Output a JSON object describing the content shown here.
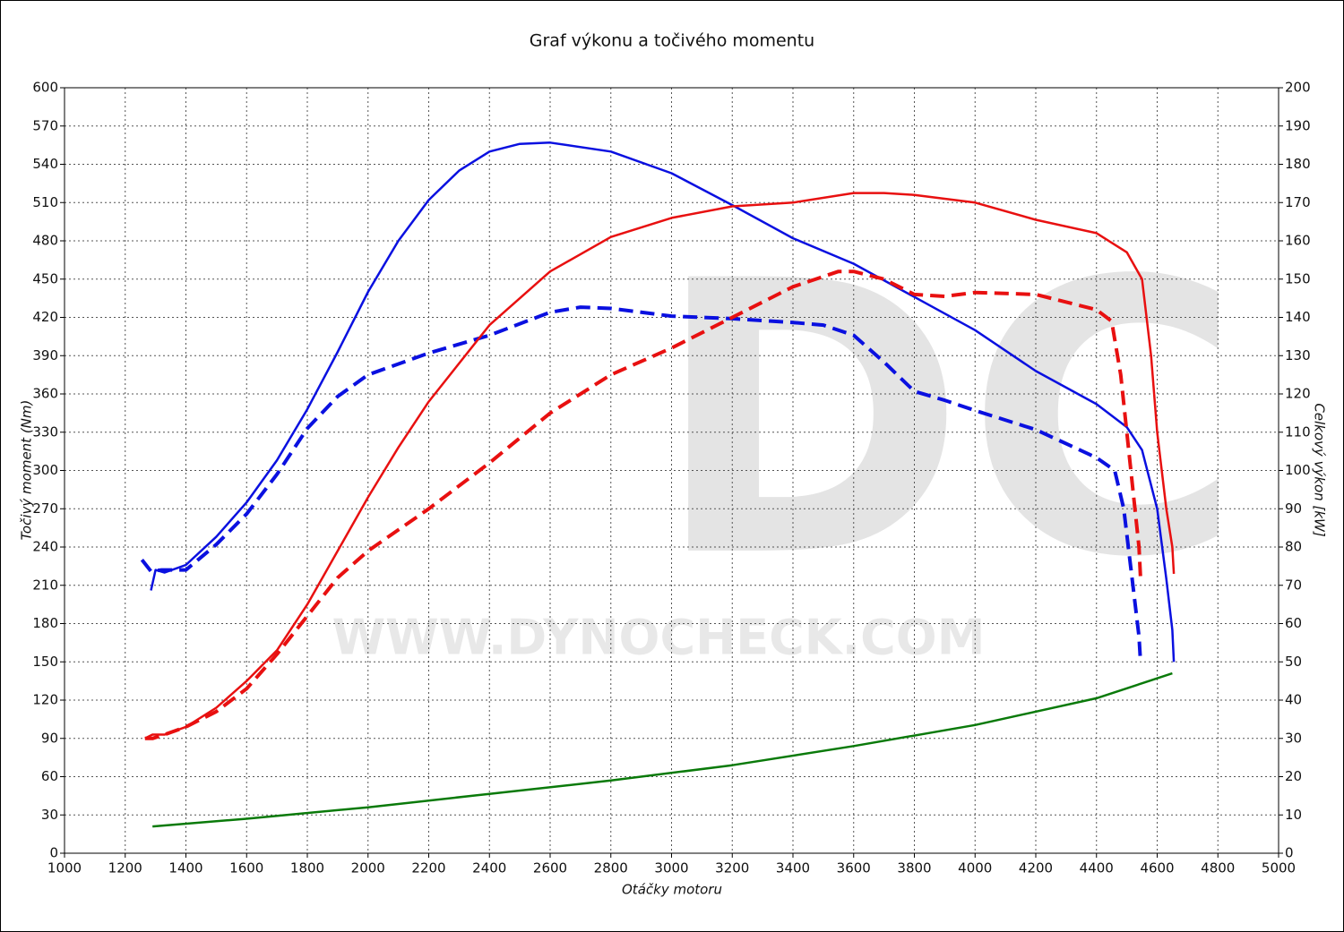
{
  "chart_data": {
    "type": "line",
    "title": "Graf výkonu a točivého momentu",
    "x_label": "Otáčky motoru",
    "y_label": "Točivý moment (Nm)",
    "y2_label": "Celkový výkon [kW]",
    "watermark": "DC",
    "watermark_url": "WWW.DYNOCHECK.COM",
    "xlim": [
      1000,
      5000
    ],
    "xticks": [
      1000,
      1200,
      1400,
      1600,
      1800,
      2000,
      2200,
      2400,
      2600,
      2800,
      3000,
      3200,
      3400,
      3600,
      3800,
      4000,
      4200,
      4400,
      4600,
      4800,
      5000
    ],
    "ylim": [
      0,
      600
    ],
    "yticks": [
      0,
      30,
      60,
      90,
      120,
      150,
      180,
      210,
      240,
      270,
      300,
      330,
      360,
      390,
      420,
      450,
      480,
      510,
      540,
      570,
      600
    ],
    "y2lim": [
      0,
      200
    ],
    "y2ticks": [
      0,
      10,
      20,
      30,
      40,
      50,
      60,
      70,
      80,
      90,
      100,
      110,
      120,
      130,
      140,
      150,
      160,
      170,
      180,
      190,
      200
    ],
    "grid": true,
    "series": [
      {
        "color": "#0a10e0",
        "axis": "y",
        "dash": false,
        "x": [
          1285,
          1300,
          1330,
          1400,
          1500,
          1600,
          1700,
          1800,
          1900,
          2000,
          2100,
          2200,
          2300,
          2400,
          2500,
          2600,
          2800,
          3000,
          3200,
          3400,
          3600,
          3800,
          4000,
          4200,
          4400,
          4500,
          4550,
          4600,
          4630,
          4650,
          4655
        ],
        "values": [
          206,
          222,
          220,
          226,
          248,
          275,
          308,
          348,
          393,
          440,
          480,
          512,
          535,
          550,
          556,
          557,
          550,
          533,
          508,
          482,
          462,
          436,
          410,
          378,
          352,
          334,
          316,
          270,
          215,
          175,
          150
        ]
      },
      {
        "color": "#0a10e0",
        "axis": "y",
        "dash": true,
        "x": [
          1255,
          1285,
          1320,
          1400,
          1500,
          1600,
          1700,
          1800,
          1900,
          2000,
          2200,
          2400,
          2600,
          2700,
          2800,
          3000,
          3200,
          3400,
          3500,
          3600,
          3700,
          3800,
          3900,
          4000,
          4200,
          4400,
          4460,
          4490,
          4510,
          4530,
          4540,
          4545
        ],
        "values": [
          230,
          221,
          222,
          222,
          242,
          266,
          297,
          333,
          358,
          375,
          392,
          406,
          424,
          428,
          427,
          421,
          419,
          416,
          414,
          406,
          385,
          362,
          355,
          347,
          332,
          310,
          300,
          270,
          230,
          190,
          170,
          150
        ]
      },
      {
        "color": "#e81010",
        "axis": "y2",
        "dash": false,
        "x": [
          1265,
          1290,
          1330,
          1400,
          1500,
          1600,
          1700,
          1800,
          1900,
          2000,
          2100,
          2200,
          2400,
          2600,
          2800,
          3000,
          3200,
          3400,
          3600,
          3700,
          3800,
          4000,
          4200,
          4400,
          4500,
          4550,
          4580,
          4600,
          4630,
          4650,
          4655
        ],
        "values": [
          30,
          31,
          31,
          33,
          38,
          45,
          53,
          65,
          79,
          93,
          106,
          118,
          138,
          152,
          161,
          166,
          169,
          170,
          172.5,
          172.5,
          172,
          170,
          165.5,
          162,
          157,
          150,
          130,
          110,
          90,
          80,
          73
        ]
      },
      {
        "color": "#e81010",
        "axis": "y2",
        "dash": true,
        "x": [
          1265,
          1290,
          1330,
          1400,
          1500,
          1600,
          1700,
          1800,
          1900,
          2000,
          2200,
          2400,
          2600,
          2800,
          3000,
          3200,
          3400,
          3550,
          3600,
          3700,
          3800,
          3900,
          4000,
          4200,
          4400,
          4450,
          4480,
          4500,
          4520,
          4540,
          4545
        ],
        "values": [
          30,
          30,
          31,
          33,
          37,
          43,
          52,
          62,
          72,
          79,
          90,
          102,
          115,
          125,
          132,
          140,
          148,
          152,
          152,
          150,
          146,
          145.5,
          146.5,
          146,
          142,
          139,
          125,
          110,
          95,
          80,
          72
        ]
      },
      {
        "color": "#0a7a0a",
        "axis": "y2",
        "dash": false,
        "x": [
          1290,
          1600,
          2000,
          2400,
          2800,
          3200,
          3600,
          4000,
          4400,
          4650
        ],
        "values": [
          7,
          9,
          12,
          15.5,
          19,
          23,
          28,
          33.5,
          40.5,
          47
        ]
      }
    ]
  }
}
